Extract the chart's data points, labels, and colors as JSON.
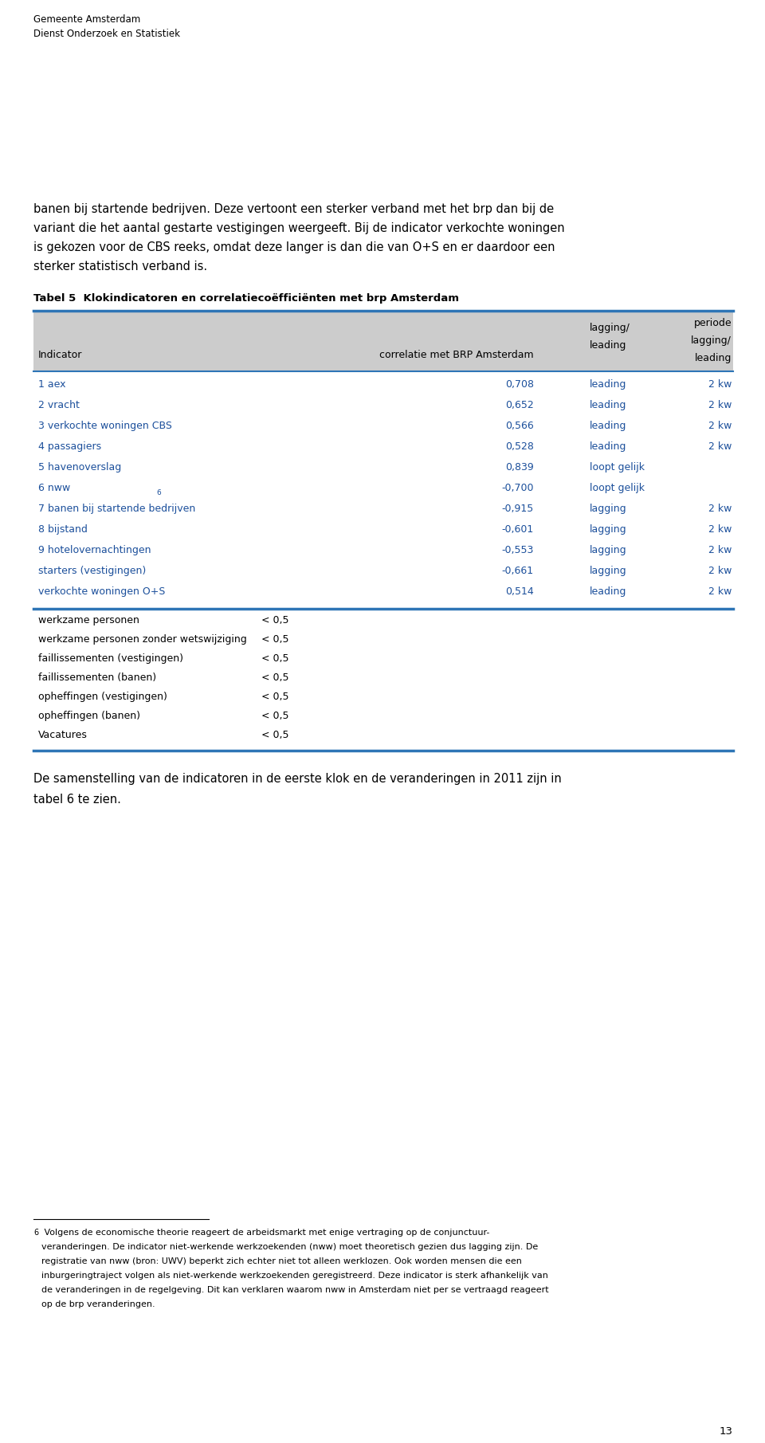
{
  "header_line1": "Gemeente Amsterdam",
  "header_line2": "Dienst Onderzoek en Statistiek",
  "table_title": "Tabel 5  Klokindicatoren en correlatiecoëfficiënten met brp Amsterdam",
  "blue_rows": [
    {
      "indicator": "1 aex",
      "correlatie": "0,708",
      "lagging_leading": "leading",
      "periode": "2 kw"
    },
    {
      "indicator": "2 vracht",
      "correlatie": "0,652",
      "lagging_leading": "leading",
      "periode": "2 kw"
    },
    {
      "indicator": "3 verkochte woningen CBS",
      "correlatie": "0,566",
      "lagging_leading": "leading",
      "periode": "2 kw"
    },
    {
      "indicator": "4 passagiers",
      "correlatie": "0,528",
      "lagging_leading": "leading",
      "periode": "2 kw"
    },
    {
      "indicator": "5 havenoverslag",
      "correlatie": "0,839",
      "lagging_leading": "loopt gelijk",
      "periode": ""
    },
    {
      "indicator": "6 nww",
      "correlatie": "-0,700",
      "lagging_leading": "loopt gelijk",
      "periode": "",
      "superscript": true
    },
    {
      "indicator": "7 banen bij startende bedrijven",
      "correlatie": "-0,915",
      "lagging_leading": "lagging",
      "periode": "2 kw"
    },
    {
      "indicator": "8 bijstand",
      "correlatie": "-0,601",
      "lagging_leading": "lagging",
      "periode": "2 kw"
    },
    {
      "indicator": "9 hotelovernachtingen",
      "correlatie": "-0,553",
      "lagging_leading": "lagging",
      "periode": "2 kw"
    },
    {
      "indicator": "starters (vestigingen)",
      "correlatie": "-0,661",
      "lagging_leading": "lagging",
      "periode": "2 kw"
    },
    {
      "indicator": "verkochte woningen O+S",
      "correlatie": "0,514",
      "lagging_leading": "leading",
      "periode": "2 kw"
    }
  ],
  "gray_rows": [
    {
      "indicator": "werkzame personen",
      "correlatie": "< 0,5"
    },
    {
      "indicator": "werkzame personen zonder wetswijziging",
      "correlatie": "< 0,5"
    },
    {
      "indicator": "faillissementen (vestigingen)",
      "correlatie": "< 0,5"
    },
    {
      "indicator": "faillissementen (banen)",
      "correlatie": "< 0,5"
    },
    {
      "indicator": "opheffingen (vestigingen)",
      "correlatie": "< 0,5"
    },
    {
      "indicator": "opheffingen (banen)",
      "correlatie": "< 0,5"
    },
    {
      "indicator": "Vacatures",
      "correlatie": "< 0,5"
    }
  ],
  "page_number": "13",
  "blue_color": "#1B4F9B",
  "table_border_color": "#2E75B6",
  "header_bg": "#CCCCCC",
  "intro_lines": [
    "banen bij startende bedrijven. Deze vertoont een sterker verband met het brp dan bij de",
    "variant die het aantal gestarte vestigingen weergeeft. Bij de indicator verkochte woningen",
    "is gekozen voor de CBS reeks, omdat deze langer is dan die van O+S en er daardoor een",
    "sterker statistisch verband is."
  ],
  "outro_lines": [
    "De samenstelling van de indicatoren in de eerste klok en de veranderingen in 2011 zijn in",
    "tabel 6 te zien."
  ],
  "fn_lines": [
    " Volgens de economische theorie reageert de arbeidsmarkt met enige vertraging op de conjunctuur-",
    "veranderingen. De indicator niet-werkende werkzoekenden (nww) moet theoretisch gezien dus lagging zijn. De",
    "registratie van nww (bron: UWV) beperkt zich echter niet tot alleen werklozen. Ook worden mensen die een",
    "inburgeringtraject volgen als niet-werkende werkzoekenden geregistreerd. Deze indicator is sterk afhankelijk van",
    "de veranderingen in de regelgeving. Dit kan verklaren waarom nww in Amsterdam niet per se vertraagd reageert",
    "op de brp veranderingen."
  ]
}
